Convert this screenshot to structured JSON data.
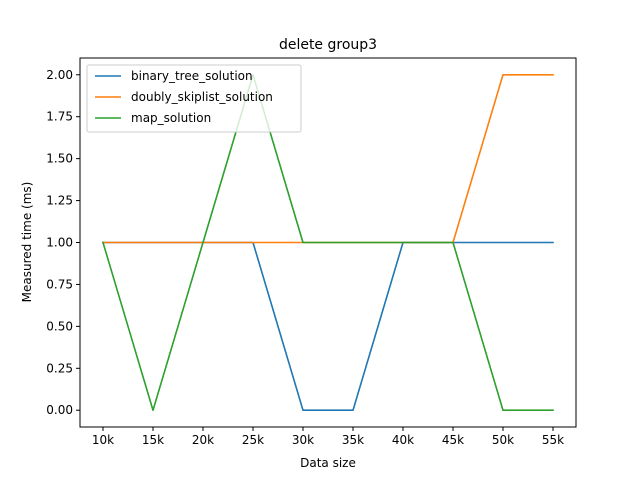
{
  "chart_data": {
    "type": "line",
    "title": "delete group3",
    "xlabel": "Data size",
    "ylabel": "Measured time (ms)",
    "categories": [
      "10k",
      "15k",
      "20k",
      "25k",
      "30k",
      "35k",
      "40k",
      "45k",
      "50k",
      "55k"
    ],
    "ylim": [
      -0.1,
      2.1
    ],
    "yticks": [
      "0.00",
      "0.25",
      "0.50",
      "0.75",
      "1.00",
      "1.25",
      "1.50",
      "1.75",
      "2.00"
    ],
    "grid": false,
    "legend_position": "top-left",
    "series": [
      {
        "name": "binary_tree_solution",
        "color": "#1f77b4",
        "values": [
          1,
          1,
          1,
          1,
          0,
          0,
          1,
          1,
          1,
          1
        ]
      },
      {
        "name": "doubly_skiplist_solution",
        "color": "#ff7f0e",
        "values": [
          1,
          1,
          1,
          1,
          1,
          1,
          1,
          1,
          2,
          2
        ]
      },
      {
        "name": "map_solution",
        "color": "#2ca02c",
        "values": [
          1,
          0,
          1,
          2,
          1,
          1,
          1,
          1,
          0,
          0
        ]
      }
    ]
  }
}
